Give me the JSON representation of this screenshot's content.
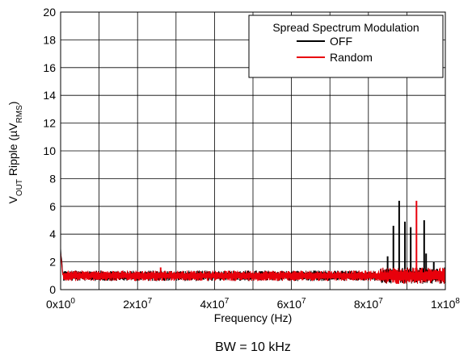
{
  "chart_data": {
    "type": "line",
    "title": "",
    "xlabel": "Frequency (Hz)",
    "ylabel_parts": [
      "V",
      "OUT",
      " Ripple (µV",
      "RMS",
      ")"
    ],
    "caption": "BW = 10 kHz",
    "xlim": [
      0,
      100000000
    ],
    "ylim": [
      0,
      20
    ],
    "grid": true,
    "x_ticks": [
      {
        "value": 0,
        "base": "0x10",
        "exp": "0"
      },
      {
        "value": 20000000,
        "base": "2x10",
        "exp": "7"
      },
      {
        "value": 40000000,
        "base": "4x10",
        "exp": "7"
      },
      {
        "value": 60000000,
        "base": "6x10",
        "exp": "7"
      },
      {
        "value": 80000000,
        "base": "8x10",
        "exp": "7"
      },
      {
        "value": 100000000,
        "base": "1x10",
        "exp": "8"
      }
    ],
    "x_minor_step": 10000000,
    "y_ticks": [
      0,
      2,
      4,
      6,
      8,
      10,
      12,
      14,
      16,
      18,
      20
    ],
    "legend": {
      "title": "Spread Spectrum Modulation",
      "placement": "top-right"
    },
    "series": [
      {
        "name": "OFF",
        "color": "#000000",
        "baseline": 1.0,
        "spikes": [
          {
            "x": 85000000,
            "y": 2.4
          },
          {
            "x": 86500000,
            "y": 4.6
          },
          {
            "x": 88000000,
            "y": 6.4
          },
          {
            "x": 89500000,
            "y": 4.9
          },
          {
            "x": 91000000,
            "y": 4.5
          },
          {
            "x": 94500000,
            "y": 5.0
          },
          {
            "x": 95000000,
            "y": 2.6
          },
          {
            "x": 97000000,
            "y": 2.0
          }
        ],
        "start_peak": 2.9
      },
      {
        "name": "Random",
        "color": "#e8000b",
        "baseline": 1.0,
        "spikes": [
          {
            "x": 92500000,
            "y": 6.4
          },
          {
            "x": 26000000,
            "y": 1.6
          }
        ],
        "start_peak": 2.5
      }
    ]
  }
}
